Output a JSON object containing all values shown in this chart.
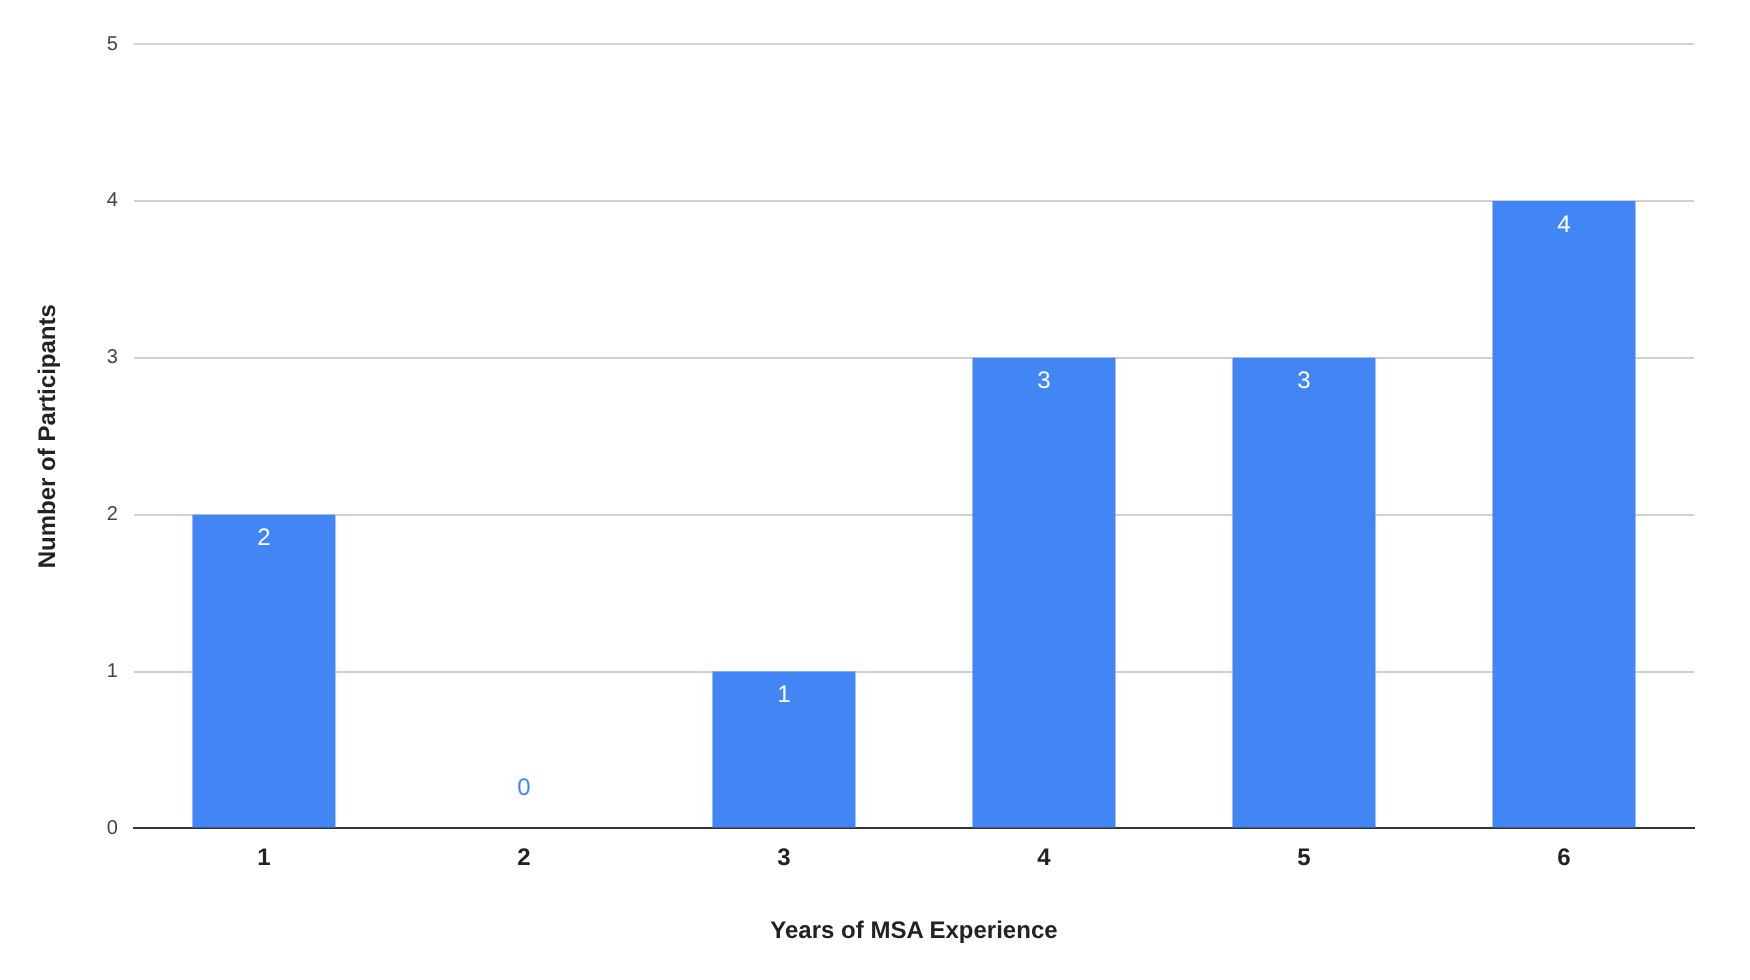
{
  "chart_data": {
    "type": "bar",
    "xlabel": "Years of MSA Experience",
    "ylabel": "Number of Participants",
    "categories": [
      "1",
      "2",
      "3",
      "4",
      "5",
      "6"
    ],
    "values": [
      2,
      0,
      1,
      3,
      3,
      4
    ],
    "color": "#4285f4",
    "ylim": [
      0,
      5
    ],
    "yticks": [
      0,
      1,
      2,
      3,
      4,
      5
    ],
    "grid": "y",
    "data_labels": true
  }
}
